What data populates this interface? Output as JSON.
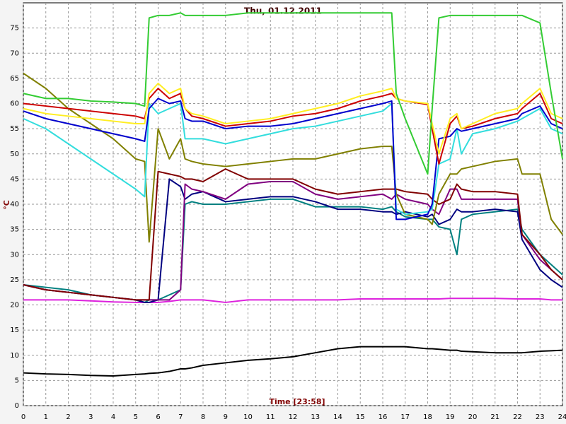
{
  "chart_data": {
    "type": "line",
    "title": "Thu, 01.12.2011",
    "xlabel": "Time [23:58]",
    "ylabel": "°C",
    "x": [
      0,
      1,
      2,
      3,
      4,
      5,
      5.4,
      5.6,
      6,
      6.5,
      7,
      7.2,
      7.5,
      8,
      9,
      10,
      11,
      12,
      13,
      14,
      15,
      16,
      16.4,
      16.6,
      17,
      18,
      18.2,
      18.5,
      19,
      19.3,
      19.5,
      20,
      21,
      22,
      22.2,
      23,
      23.5,
      24
    ],
    "xlim": [
      0,
      24
    ],
    "xticks": [
      0,
      1,
      2,
      3,
      4,
      5,
      6,
      7,
      8,
      9,
      10,
      11,
      12,
      13,
      14,
      15,
      16,
      17,
      18,
      19,
      20,
      21,
      22,
      23,
      24
    ],
    "ylim": [
      0,
      80
    ],
    "yticks": [
      0,
      5,
      10,
      15,
      20,
      25,
      30,
      35,
      40,
      45,
      50,
      55,
      60,
      65,
      70,
      75
    ],
    "grid": true,
    "series": [
      {
        "color": "#000000",
        "values": [
          6.5,
          6.3,
          6.2,
          6,
          5.9,
          6.2,
          6.3,
          6.4,
          6.5,
          6.8,
          7.3,
          7.3,
          7.5,
          8,
          8.5,
          9,
          9.3,
          9.7,
          10.5,
          11.3,
          11.7,
          11.7,
          11.7,
          11.7,
          11.7,
          11.3,
          11.3,
          11.2,
          11,
          11,
          10.8,
          10.7,
          10.5,
          10.5,
          10.5,
          10.8,
          10.9,
          11
        ]
      },
      {
        "color": "#dd22dd",
        "values": [
          21,
          21,
          21,
          20.8,
          20.6,
          20.5,
          20.5,
          20.5,
          20.5,
          20.7,
          21,
          21,
          21,
          21,
          20.5,
          21,
          21,
          21,
          21,
          21,
          21.2,
          21.2,
          21.2,
          21.2,
          21.2,
          21.2,
          21.2,
          21.2,
          21.3,
          21.3,
          21.3,
          21.3,
          21.3,
          21.2,
          21.2,
          21.2,
          21,
          21
        ]
      },
      {
        "color": "#008080",
        "values": [
          24,
          23.5,
          23,
          22,
          21.5,
          21,
          20.5,
          21,
          21,
          22,
          23,
          40,
          40.5,
          40,
          40,
          40.5,
          41,
          41,
          39.5,
          39.5,
          39.5,
          39,
          39.5,
          38.5,
          37.5,
          37,
          37,
          35.5,
          35,
          30,
          37,
          38,
          38.5,
          39,
          35,
          30,
          28,
          26
        ]
      },
      {
        "color": "#000080",
        "values": [
          24,
          23,
          22.5,
          22,
          21.5,
          21,
          20.5,
          20.5,
          21,
          45,
          43.5,
          41,
          42,
          42.5,
          40.5,
          41,
          41.5,
          41.5,
          40.5,
          39,
          39,
          38.5,
          38.5,
          38,
          38.5,
          37.5,
          38,
          36,
          37,
          39,
          38.5,
          38.5,
          39,
          38.5,
          33,
          27,
          25,
          23.5
        ]
      },
      {
        "color": "#800080",
        "values": [
          24,
          23,
          22.5,
          22,
          21.5,
          21,
          21,
          21,
          21,
          21,
          23,
          44,
          43,
          42.5,
          41,
          44,
          44.5,
          44.5,
          42,
          41,
          41.5,
          42,
          41,
          42,
          41,
          40,
          39,
          38,
          43,
          43,
          41,
          41,
          41,
          41,
          34,
          29,
          27,
          25
        ]
      },
      {
        "color": "#800000",
        "values": [
          24,
          23,
          22.5,
          22,
          21.5,
          21,
          21,
          21,
          46.5,
          46,
          45.5,
          45,
          45,
          44.5,
          47,
          45,
          45,
          45,
          43,
          42,
          42.5,
          43,
          43,
          43,
          42.5,
          42,
          41,
          40,
          41,
          44,
          43,
          42.5,
          42.5,
          42,
          34,
          30,
          27,
          25
        ]
      },
      {
        "color": "#808000",
        "values": [
          66,
          63,
          59,
          56,
          53,
          49,
          48.5,
          32.5,
          55,
          49,
          53,
          49,
          48.5,
          48,
          47.5,
          48,
          48.5,
          49,
          49,
          50,
          51,
          51.5,
          51.5,
          42,
          38,
          37,
          36,
          42,
          46,
          46,
          47,
          47.5,
          48.5,
          49,
          46,
          46,
          37,
          34
        ]
      },
      {
        "color": "#33dddd",
        "values": [
          57,
          55,
          52,
          49,
          46,
          43,
          41.5,
          60,
          58,
          59,
          60,
          53,
          53,
          53,
          52,
          53,
          54,
          55,
          55.5,
          56.5,
          57.5,
          58.5,
          60,
          39,
          38,
          38.5,
          39,
          48,
          49,
          55,
          50,
          54,
          55,
          56.5,
          57,
          59,
          55,
          54
        ]
      },
      {
        "color": "#0000cc",
        "values": [
          58.5,
          57,
          56,
          55,
          54,
          53,
          52.5,
          59,
          61,
          60,
          60.5,
          57,
          56.5,
          56.5,
          55,
          55.5,
          55.5,
          56,
          57,
          58,
          59,
          60,
          60.5,
          37,
          37,
          38,
          40,
          53,
          53.5,
          55,
          54.5,
          55,
          56,
          57,
          58,
          59.5,
          56,
          55
        ]
      },
      {
        "color": "#cc0000",
        "values": [
          60,
          59.5,
          59,
          58.5,
          58,
          57.5,
          57,
          61,
          63,
          61,
          62,
          59,
          57.5,
          57,
          55.5,
          56,
          56.5,
          57.5,
          58,
          59,
          60.5,
          61.5,
          62,
          61,
          60.5,
          59.8,
          55,
          48,
          56,
          57.5,
          55,
          55.5,
          57,
          58,
          59,
          62,
          57,
          56
        ]
      },
      {
        "color": "#ffee22",
        "values": [
          59,
          58,
          57.5,
          57,
          56.5,
          56,
          56,
          62,
          64,
          62,
          63,
          59,
          58,
          57.5,
          56,
          56.5,
          57,
          58,
          59,
          60,
          61.5,
          62.5,
          63,
          61,
          60.5,
          60,
          56,
          50,
          57,
          58,
          55,
          56,
          58,
          59,
          60,
          63,
          58,
          57
        ]
      },
      {
        "color": "#33cc33",
        "values": [
          62,
          61,
          61,
          60.5,
          60.3,
          60,
          59.5,
          77,
          77.5,
          77.5,
          78,
          77.5,
          77.5,
          77.5,
          77.5,
          78,
          78,
          78,
          78,
          78,
          78,
          78,
          78,
          62,
          57,
          46,
          59,
          77,
          77.5,
          77.5,
          77.5,
          77.5,
          77.5,
          77.5,
          77.5,
          76,
          62,
          49
        ]
      }
    ]
  }
}
